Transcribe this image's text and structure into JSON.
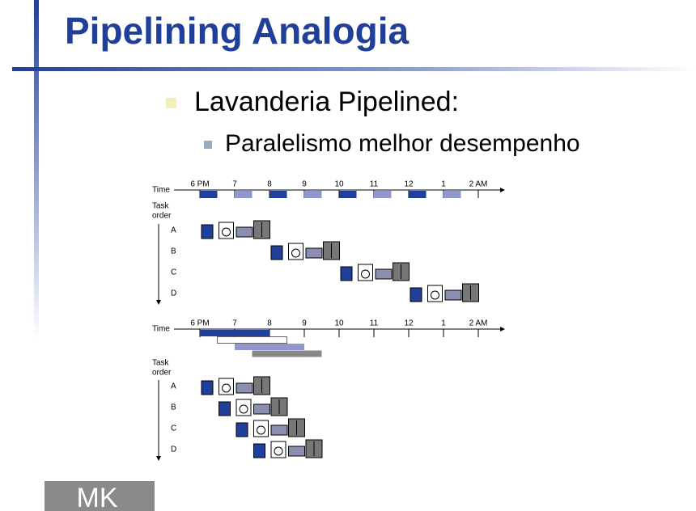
{
  "header": {
    "title": "Pipelining Analogia"
  },
  "bullets": [
    {
      "text": "Lavanderia Pipelined:",
      "sub": [
        "Paralelismo melhor desempenho"
      ]
    }
  ],
  "diagrams": [
    {
      "time_label": "Time",
      "task_order": [
        "Task",
        "order"
      ],
      "times": [
        "6 PM",
        "7",
        "8",
        "9",
        "10",
        "11",
        "12",
        "1",
        "2 AM"
      ],
      "tasks": [
        "A",
        "B",
        "C",
        "D"
      ]
    },
    {
      "time_label": "Time",
      "task_order": [
        "Task",
        "order"
      ],
      "times": [
        "6 PM",
        "7",
        "8",
        "9",
        "10",
        "11",
        "12",
        "1",
        "2 AM"
      ],
      "tasks": [
        "A",
        "B",
        "C",
        "D"
      ]
    }
  ],
  "logo": "MK"
}
